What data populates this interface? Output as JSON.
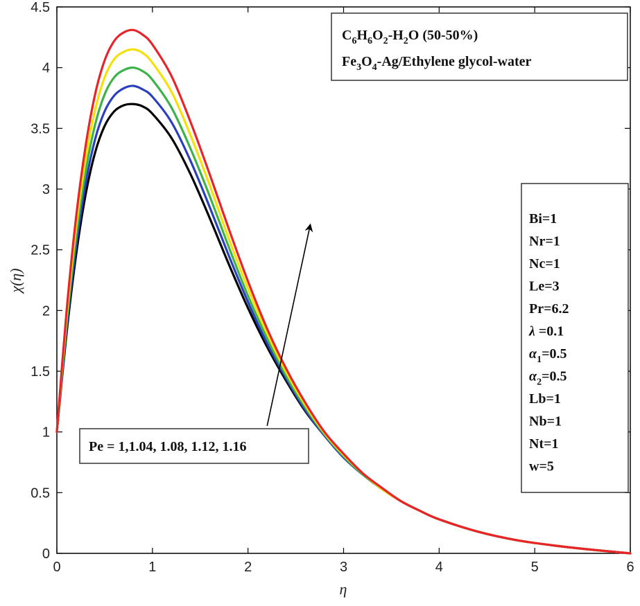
{
  "chart_data": {
    "type": "line",
    "title": "",
    "xlabel": "η",
    "ylabel": "χ(η)",
    "xlim": [
      0,
      6
    ],
    "ylim": [
      0,
      4.5
    ],
    "xticks": [
      "0",
      "1",
      "2",
      "3",
      "4",
      "5",
      "6"
    ],
    "yticks": [
      "0",
      "0.5",
      "1",
      "1.5",
      "2",
      "2.5",
      "3",
      "3.5",
      "4",
      "4.5"
    ],
    "grid": false,
    "series": [
      {
        "color": "#000000",
        "values": [
          [
            0,
            1
          ],
          [
            0.1,
            1.8
          ],
          [
            0.2,
            2.45
          ],
          [
            0.3,
            2.95
          ],
          [
            0.4,
            3.3
          ],
          [
            0.5,
            3.52
          ],
          [
            0.6,
            3.64
          ],
          [
            0.7,
            3.69
          ],
          [
            0.8,
            3.7
          ],
          [
            0.9,
            3.68
          ],
          [
            1.0,
            3.62
          ],
          [
            1.2,
            3.42
          ],
          [
            1.4,
            3.12
          ],
          [
            1.6,
            2.76
          ],
          [
            1.8,
            2.38
          ],
          [
            2.0,
            2.02
          ],
          [
            2.2,
            1.7
          ],
          [
            2.4,
            1.42
          ],
          [
            2.6,
            1.17
          ],
          [
            2.8,
            0.97
          ],
          [
            3.0,
            0.79
          ],
          [
            3.2,
            0.65
          ],
          [
            3.4,
            0.53
          ],
          [
            3.6,
            0.43
          ],
          [
            3.8,
            0.35
          ],
          [
            4.0,
            0.28
          ],
          [
            4.4,
            0.18
          ],
          [
            4.8,
            0.11
          ],
          [
            5.2,
            0.065
          ],
          [
            5.6,
            0.03
          ],
          [
            6.0,
            0
          ]
        ]
      },
      {
        "color": "#2a3fbf",
        "values": [
          [
            0,
            1
          ],
          [
            0.1,
            1.84
          ],
          [
            0.2,
            2.52
          ],
          [
            0.3,
            3.04
          ],
          [
            0.4,
            3.41
          ],
          [
            0.5,
            3.64
          ],
          [
            0.6,
            3.77
          ],
          [
            0.7,
            3.83
          ],
          [
            0.8,
            3.85
          ],
          [
            0.9,
            3.82
          ],
          [
            1.0,
            3.76
          ],
          [
            1.2,
            3.55
          ],
          [
            1.4,
            3.23
          ],
          [
            1.6,
            2.85
          ],
          [
            1.8,
            2.45
          ],
          [
            2.0,
            2.07
          ],
          [
            2.2,
            1.73
          ],
          [
            2.4,
            1.44
          ],
          [
            2.6,
            1.18
          ],
          [
            2.8,
            0.97
          ],
          [
            3.0,
            0.79
          ],
          [
            3.2,
            0.65
          ],
          [
            3.4,
            0.53
          ],
          [
            3.6,
            0.43
          ],
          [
            3.8,
            0.35
          ],
          [
            4.0,
            0.28
          ],
          [
            4.4,
            0.18
          ],
          [
            4.8,
            0.11
          ],
          [
            5.2,
            0.065
          ],
          [
            5.6,
            0.03
          ],
          [
            6.0,
            0
          ]
        ]
      },
      {
        "color": "#3cb34a",
        "values": [
          [
            0,
            1
          ],
          [
            0.1,
            1.88
          ],
          [
            0.2,
            2.6
          ],
          [
            0.3,
            3.14
          ],
          [
            0.4,
            3.53
          ],
          [
            0.5,
            3.78
          ],
          [
            0.6,
            3.92
          ],
          [
            0.7,
            3.98
          ],
          [
            0.8,
            4.0
          ],
          [
            0.9,
            3.97
          ],
          [
            1.0,
            3.9
          ],
          [
            1.2,
            3.67
          ],
          [
            1.4,
            3.33
          ],
          [
            1.6,
            2.94
          ],
          [
            1.8,
            2.52
          ],
          [
            2.0,
            2.12
          ],
          [
            2.2,
            1.77
          ],
          [
            2.4,
            1.46
          ],
          [
            2.6,
            1.2
          ],
          [
            2.8,
            0.98
          ],
          [
            3.0,
            0.8
          ],
          [
            3.2,
            0.65
          ],
          [
            3.4,
            0.53
          ],
          [
            3.6,
            0.43
          ],
          [
            3.8,
            0.35
          ],
          [
            4.0,
            0.28
          ],
          [
            4.4,
            0.18
          ],
          [
            4.8,
            0.11
          ],
          [
            5.2,
            0.065
          ],
          [
            5.6,
            0.03
          ],
          [
            6.0,
            0
          ]
        ]
      },
      {
        "color": "#f5e00a",
        "values": [
          [
            0,
            1
          ],
          [
            0.1,
            1.93
          ],
          [
            0.2,
            2.68
          ],
          [
            0.3,
            3.24
          ],
          [
            0.4,
            3.65
          ],
          [
            0.5,
            3.92
          ],
          [
            0.6,
            4.07
          ],
          [
            0.7,
            4.13
          ],
          [
            0.8,
            4.15
          ],
          [
            0.9,
            4.12
          ],
          [
            1.0,
            4.04
          ],
          [
            1.2,
            3.8
          ],
          [
            1.4,
            3.44
          ],
          [
            1.6,
            3.03
          ],
          [
            1.8,
            2.59
          ],
          [
            2.0,
            2.18
          ],
          [
            2.2,
            1.81
          ],
          [
            2.4,
            1.49
          ],
          [
            2.6,
            1.22
          ],
          [
            2.8,
            0.99
          ],
          [
            3.0,
            0.81
          ],
          [
            3.2,
            0.66
          ],
          [
            3.4,
            0.53
          ],
          [
            3.6,
            0.43
          ],
          [
            3.8,
            0.35
          ],
          [
            4.0,
            0.28
          ],
          [
            4.4,
            0.18
          ],
          [
            4.8,
            0.11
          ],
          [
            5.2,
            0.065
          ],
          [
            5.6,
            0.03
          ],
          [
            6.0,
            0
          ]
        ]
      },
      {
        "color": "#e8232a",
        "values": [
          [
            0,
            1
          ],
          [
            0.1,
            1.98
          ],
          [
            0.2,
            2.76
          ],
          [
            0.3,
            3.35
          ],
          [
            0.4,
            3.78
          ],
          [
            0.5,
            4.06
          ],
          [
            0.6,
            4.22
          ],
          [
            0.7,
            4.29
          ],
          [
            0.8,
            4.31
          ],
          [
            0.9,
            4.27
          ],
          [
            1.0,
            4.19
          ],
          [
            1.2,
            3.93
          ],
          [
            1.4,
            3.55
          ],
          [
            1.6,
            3.12
          ],
          [
            1.8,
            2.67
          ],
          [
            2.0,
            2.24
          ],
          [
            2.2,
            1.85
          ],
          [
            2.4,
            1.52
          ],
          [
            2.6,
            1.24
          ],
          [
            2.8,
            1.0
          ],
          [
            3.0,
            0.82
          ],
          [
            3.2,
            0.66
          ],
          [
            3.4,
            0.54
          ],
          [
            3.6,
            0.43
          ],
          [
            3.8,
            0.35
          ],
          [
            4.0,
            0.28
          ],
          [
            4.4,
            0.18
          ],
          [
            4.8,
            0.11
          ],
          [
            5.2,
            0.065
          ],
          [
            5.6,
            0.03
          ],
          [
            6.0,
            0
          ]
        ]
      }
    ],
    "annotations": {
      "arrow": {
        "from": [
          2.2,
          1.05
        ],
        "to": [
          2.65,
          2.7
        ]
      },
      "pe_label": "Pe = 1,1.04, 1.08, 1.12, 1.16",
      "fluid_box": {
        "line1": {
          "parts": [
            "C",
            "6",
            "H",
            "6",
            "O",
            "2",
            "-H",
            "2",
            "O (50-50%)"
          ]
        },
        "line2": {
          "parts": [
            "Fe",
            "3",
            "O",
            "4",
            "-Ag/Ethylene glycol-water"
          ]
        }
      },
      "params": [
        {
          "name": "Bi",
          "sub": "",
          "value": "=1"
        },
        {
          "name": "Nr",
          "sub": "",
          "value": "=1"
        },
        {
          "name": "Nc",
          "sub": "",
          "value": "=1"
        },
        {
          "name": "Le",
          "sub": "",
          "value": "=3"
        },
        {
          "name": "Pr",
          "sub": "",
          "value": "=6.2"
        },
        {
          "name": "λ",
          "sub": "",
          "value": " =0.1"
        },
        {
          "name": "α",
          "sub": "1",
          "value": "=0.5"
        },
        {
          "name": "α",
          "sub": "2",
          "value": "=0.5"
        },
        {
          "name": "Lb",
          "sub": "",
          "value": "=1"
        },
        {
          "name": "Nb",
          "sub": "",
          "value": "=1"
        },
        {
          "name": "Nt",
          "sub": "",
          "value": "=1"
        },
        {
          "name": "w",
          "sub": "",
          "value": "=5"
        }
      ]
    }
  }
}
